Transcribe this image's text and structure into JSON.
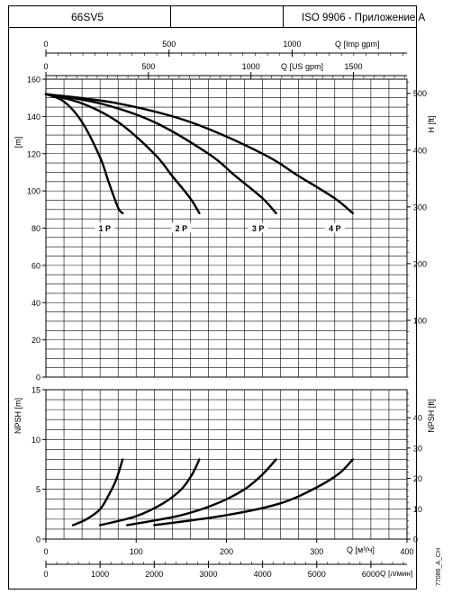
{
  "header": {
    "model": "66SV5",
    "blank": "",
    "standard": "ISO 9906 - Приложение A"
  },
  "figure_code": "77086_A_CH",
  "chart_data": [
    {
      "type": "line",
      "id": "head",
      "y_label_left": "[m]",
      "y_label_right": "H [ft]",
      "ylim": [
        0,
        160
      ],
      "y_ticks": [
        0,
        20,
        40,
        60,
        80,
        100,
        120,
        140,
        160
      ],
      "y2_ticks": [
        100,
        200,
        300,
        400,
        500
      ],
      "top_axes": [
        {
          "label": "Q [Imp gpm]",
          "ticks": [
            0,
            500,
            1000
          ]
        },
        {
          "label": "Q [US gpm]",
          "ticks": [
            0,
            500,
            1000,
            1500
          ]
        }
      ],
      "series": [
        {
          "name": "1 P",
          "x": [
            0,
            20,
            40,
            60,
            70,
            80,
            85
          ],
          "y": [
            152,
            148,
            137,
            118,
            104,
            91,
            88
          ]
        },
        {
          "name": "2 P",
          "x": [
            0,
            40,
            80,
            120,
            140,
            160,
            170
          ],
          "y": [
            152,
            147,
            137,
            120,
            108,
            96,
            88
          ]
        },
        {
          "name": "3 P",
          "x": [
            0,
            60,
            120,
            180,
            210,
            240,
            255
          ],
          "y": [
            152,
            147,
            137,
            120,
            108,
            96,
            88
          ]
        },
        {
          "name": "4 P",
          "x": [
            0,
            80,
            160,
            240,
            280,
            320,
            340
          ],
          "y": [
            152,
            147,
            137,
            120,
            108,
            96,
            88
          ]
        }
      ]
    },
    {
      "type": "line",
      "id": "npsh",
      "y_label_left": "NPSH [m]",
      "y_label_right": "NPSH [ft]",
      "ylim": [
        0,
        15
      ],
      "y_ticks": [
        0,
        5,
        10,
        15
      ],
      "y2_ticks": [
        0,
        10,
        20,
        30,
        40
      ],
      "bottom_axes": [
        {
          "label": "Q [м³/ч]",
          "ticks": [
            0,
            100,
            200,
            300,
            400
          ],
          "xlim": [
            0,
            400
          ]
        },
        {
          "label": "Q [л/мин]",
          "ticks": [
            0,
            1000,
            2000,
            3000,
            4000,
            5000,
            6000
          ]
        }
      ],
      "series": [
        {
          "name": "1 P",
          "x": [
            30,
            45,
            60,
            70,
            78,
            85
          ],
          "y": [
            1.4,
            2.0,
            3.0,
            4.5,
            6.0,
            8.0
          ]
        },
        {
          "name": "2 P",
          "x": [
            60,
            100,
            130,
            150,
            162,
            170
          ],
          "y": [
            1.4,
            2.3,
            3.6,
            5.0,
            6.5,
            8.0
          ]
        },
        {
          "name": "3 P",
          "x": [
            90,
            150,
            190,
            220,
            240,
            255
          ],
          "y": [
            1.4,
            2.4,
            3.6,
            5.0,
            6.5,
            8.0
          ]
        },
        {
          "name": "4 P",
          "x": [
            120,
            200,
            260,
            300,
            325,
            340
          ],
          "y": [
            1.4,
            2.4,
            3.6,
            5.2,
            6.6,
            8.0
          ]
        }
      ]
    }
  ]
}
